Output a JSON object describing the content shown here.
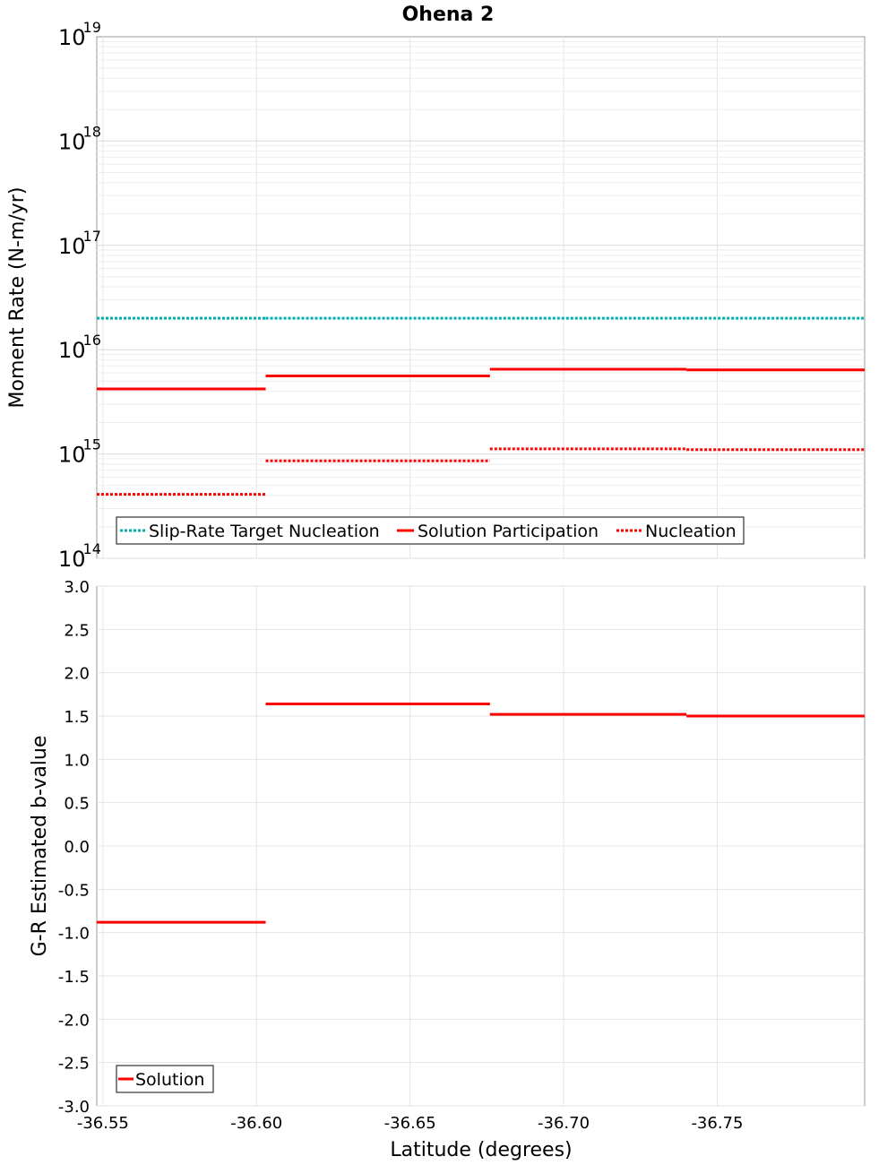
{
  "chart_data": [
    {
      "type": "line",
      "title": "Ohena 2",
      "ylabel": "Moment Rate (N-m/yr)",
      "xlabel": "Latitude (degrees)",
      "yscale": "log",
      "ylim": [
        100000000000000.0,
        1e+19
      ],
      "xlim": [
        -36.548,
        -36.798
      ],
      "y_ticks": [
        {
          "base": "10",
          "exp": "14",
          "value": 100000000000000.0
        },
        {
          "base": "10",
          "exp": "15",
          "value": 1000000000000000.0
        },
        {
          "base": "10",
          "exp": "16",
          "value": 1e+16
        },
        {
          "base": "10",
          "exp": "17",
          "value": 1e+17
        },
        {
          "base": "10",
          "exp": "18",
          "value": 1e+18
        },
        {
          "base": "10",
          "exp": "19",
          "value": 1e+19
        }
      ],
      "series": [
        {
          "name": "Slip-Rate Target Nucleation",
          "color": "#00b0b0",
          "style": "dotted",
          "segments": [
            {
              "x0": -36.548,
              "x1": -36.603,
              "y": 2e+16
            },
            {
              "x0": -36.603,
              "x1": -36.676,
              "y": 2e+16
            },
            {
              "x0": -36.676,
              "x1": -36.74,
              "y": 2e+16
            },
            {
              "x0": -36.74,
              "x1": -36.798,
              "y": 2e+16
            }
          ]
        },
        {
          "name": "Solution Participation",
          "color": "#ff0000",
          "style": "solid",
          "segments": [
            {
              "x0": -36.548,
              "x1": -36.603,
              "y": 4200000000000000.0
            },
            {
              "x0": -36.603,
              "x1": -36.676,
              "y": 5600000000000000.0
            },
            {
              "x0": -36.676,
              "x1": -36.74,
              "y": 6500000000000000.0
            },
            {
              "x0": -36.74,
              "x1": -36.798,
              "y": 6400000000000000.0
            }
          ]
        },
        {
          "name": "Nucleation",
          "color": "#ff0000",
          "style": "dotted",
          "segments": [
            {
              "x0": -36.548,
              "x1": -36.603,
              "y": 410000000000000.0
            },
            {
              "x0": -36.603,
              "x1": -36.676,
              "y": 860000000000000.0
            },
            {
              "x0": -36.676,
              "x1": -36.74,
              "y": 1120000000000000.0
            },
            {
              "x0": -36.74,
              "x1": -36.798,
              "y": 1100000000000000.0
            }
          ]
        }
      ],
      "legend_position": "bottom-left"
    },
    {
      "type": "line",
      "title": "",
      "ylabel": "G-R Estimated b-value",
      "xlabel": "Latitude (degrees)",
      "ylim": [
        -3.0,
        3.0
      ],
      "xlim": [
        -36.548,
        -36.798
      ],
      "y_ticks": [
        "3.0",
        "2.5",
        "2.0",
        "1.5",
        "1.0",
        "0.5",
        "0.0",
        "-0.5",
        "-1.0",
        "-1.5",
        "-2.0",
        "-2.5",
        "-3.0"
      ],
      "x_ticks": [
        "-36.55",
        "-36.60",
        "-36.65",
        "-36.70",
        "-36.75"
      ],
      "series": [
        {
          "name": "Solution",
          "color": "#ff0000",
          "style": "solid",
          "segments": [
            {
              "x0": -36.548,
              "x1": -36.603,
              "y": -0.88
            },
            {
              "x0": -36.603,
              "x1": -36.676,
              "y": 1.64
            },
            {
              "x0": -36.676,
              "x1": -36.74,
              "y": 1.52
            },
            {
              "x0": -36.74,
              "x1": -36.798,
              "y": 1.5
            }
          ]
        }
      ],
      "legend_position": "bottom-left"
    }
  ]
}
